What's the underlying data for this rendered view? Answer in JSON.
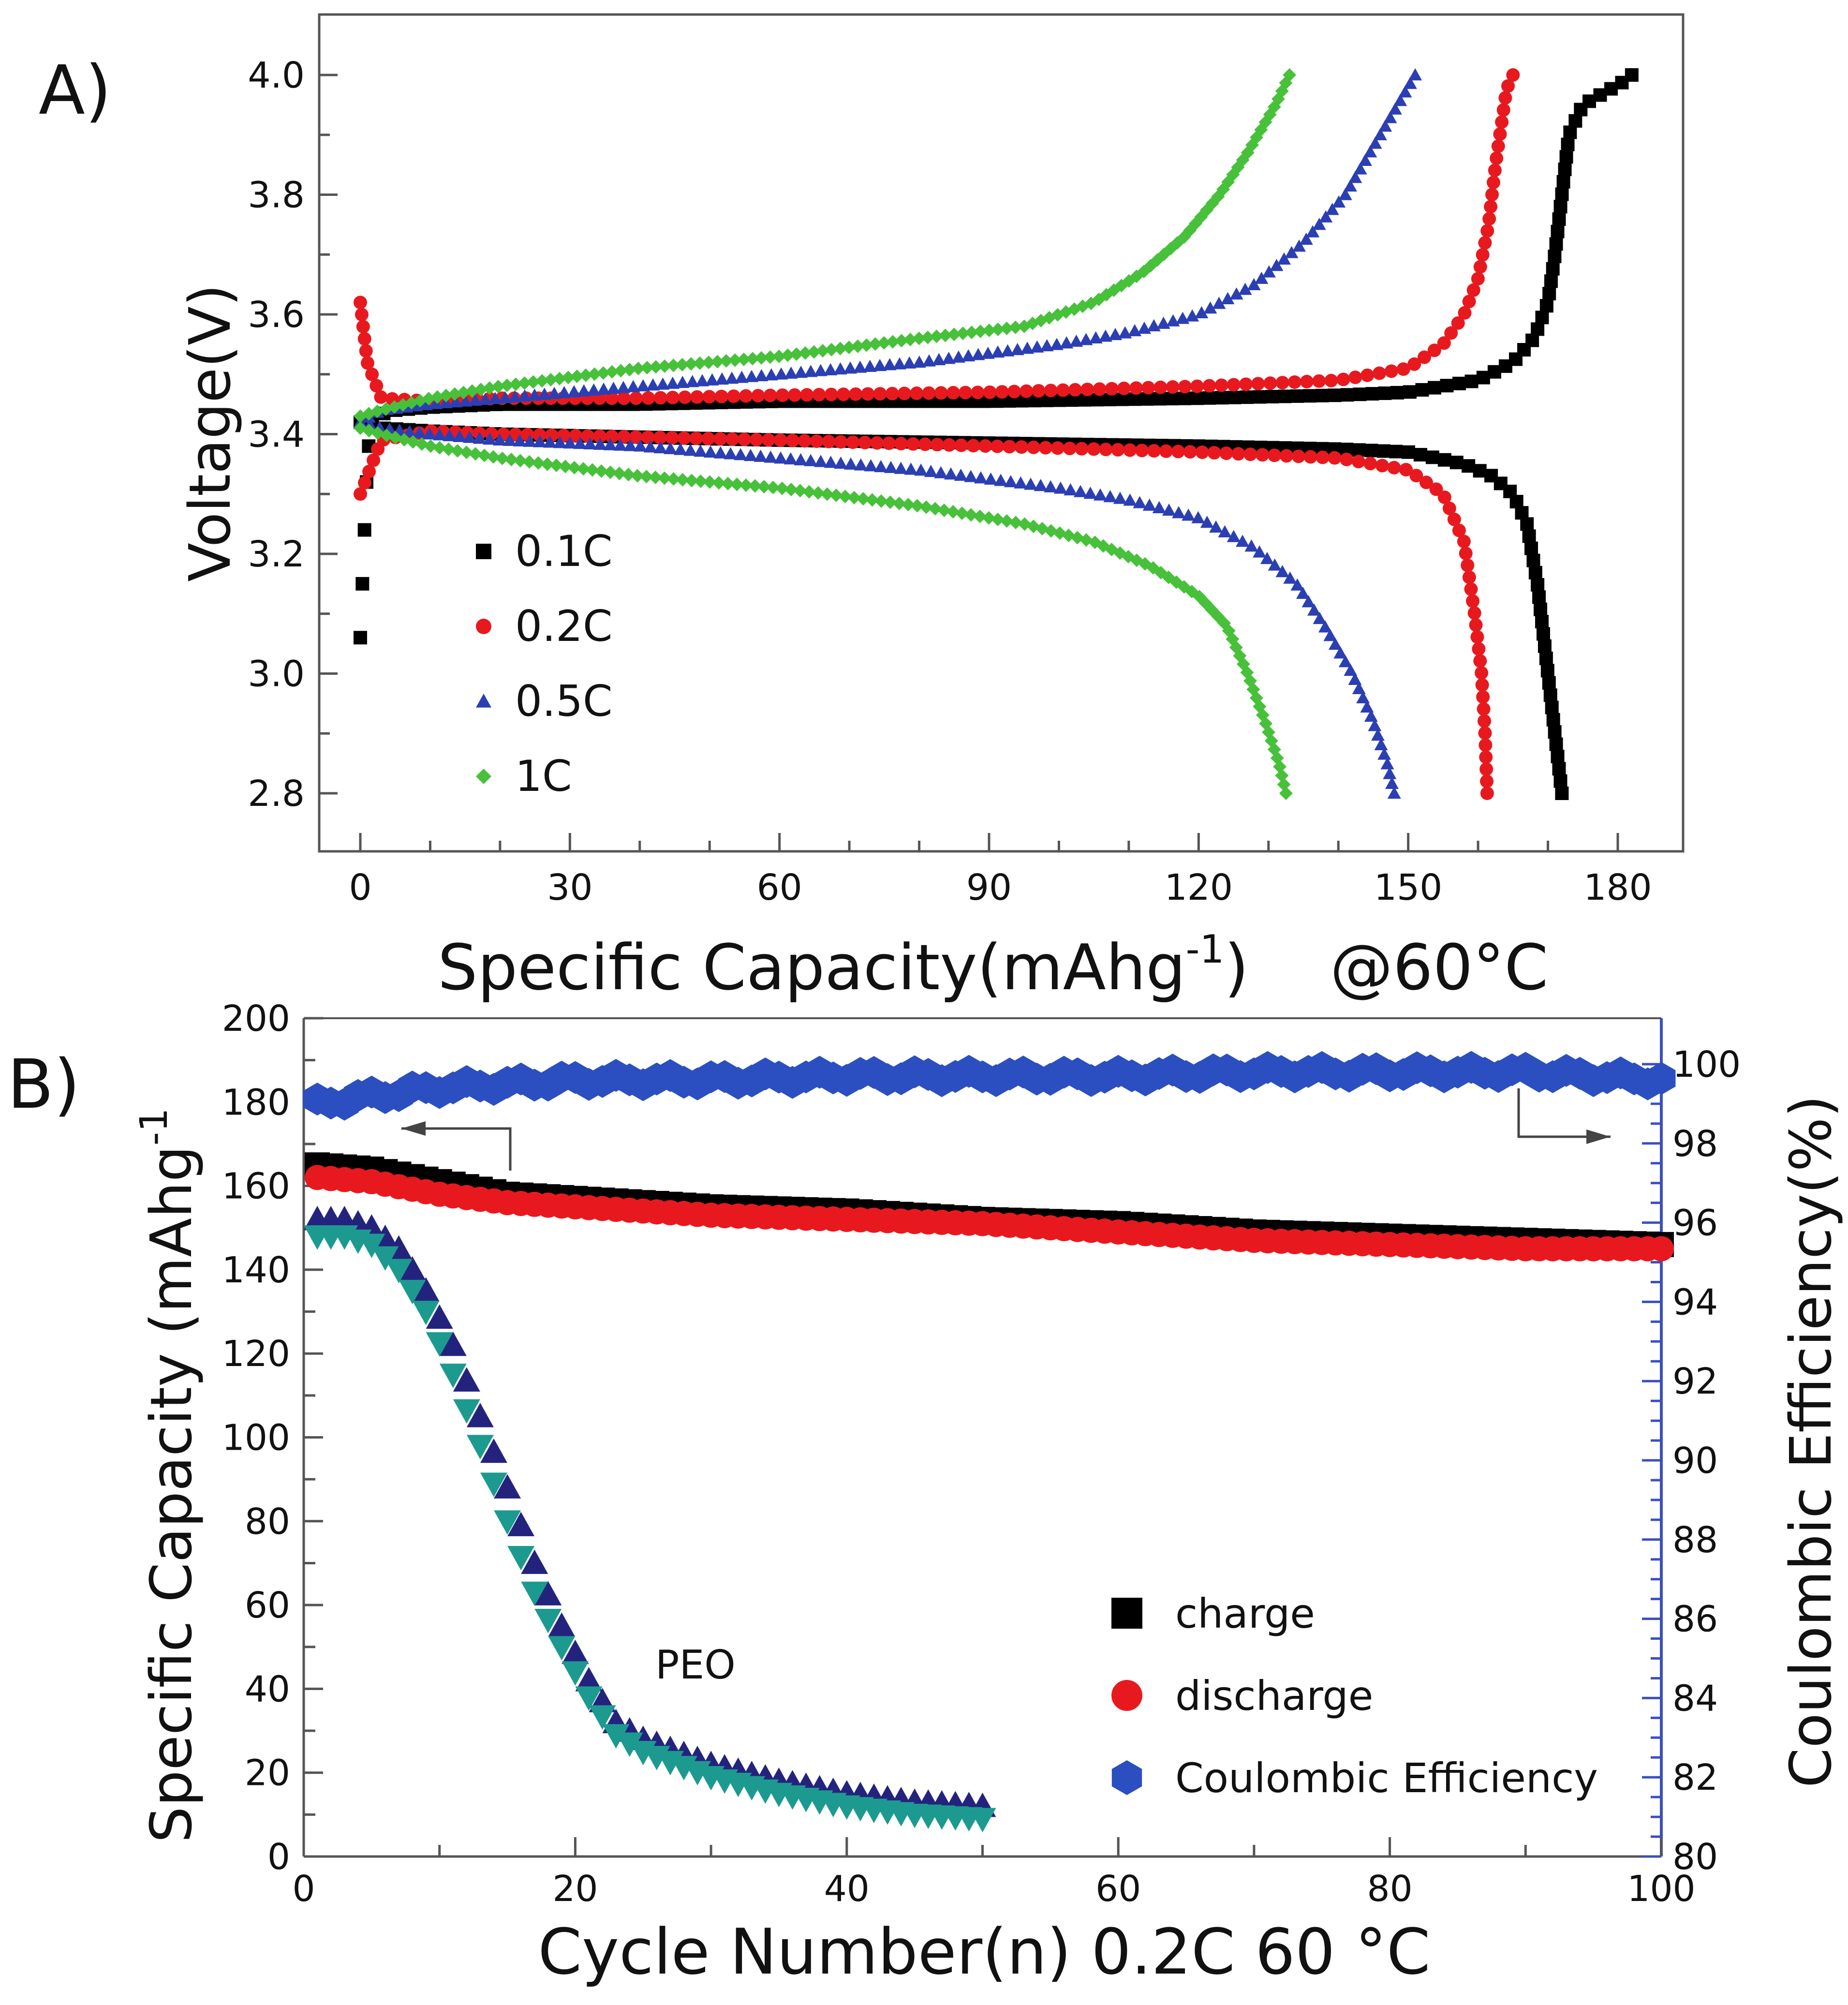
{
  "panel_a": {
    "label": "A)",
    "chart_data": {
      "type": "scatter",
      "title": "",
      "xlabel": "Specific Capacity(mAhg",
      "xlabel_sup": "-1",
      "xlabel_close": ")",
      "xlabel_note": "@60°C",
      "ylabel": "Voltage(V)",
      "xlim": [
        -5,
        188
      ],
      "ylim": [
        2.72,
        4.1
      ],
      "xticks": [
        0,
        30,
        60,
        90,
        120,
        150,
        180
      ],
      "xtick_labels": [
        "0",
        "30",
        "60",
        "90",
        "120",
        "150",
        "180"
      ],
      "yticks": [
        2.8,
        3.0,
        3.2,
        3.4,
        3.6,
        3.8,
        4.0
      ],
      "ytick_labels": [
        "2.8",
        "3.0",
        "3.2",
        "3.4",
        "3.6",
        "3.8",
        "4.0"
      ],
      "legend_position": "lower-left",
      "series": [
        {
          "name": "0.1C",
          "color": "#000000",
          "marker": "square",
          "charge": {
            "x": [
              0,
              2,
              5,
              10,
              20,
              40,
              60,
              90,
              120,
              140,
              150,
              160,
              165,
              168,
              170,
              171,
              172,
              173,
              175,
              178,
              181,
              182
            ],
            "y": [
              3.42,
              3.43,
              3.44,
              3.445,
              3.45,
              3.45,
              3.455,
              3.455,
              3.46,
              3.465,
              3.47,
              3.49,
              3.52,
              3.56,
              3.62,
              3.7,
              3.8,
              3.9,
              3.95,
              3.97,
              3.99,
              4.0
            ]
          },
          "discharge": {
            "x": [
              0,
              3,
              10,
              20,
              40,
              60,
              90,
              120,
              140,
              150,
              158,
              162,
              165,
              167,
              168.5,
              169.5,
              170.5,
              171.5,
              172
            ],
            "y": [
              3.42,
              3.41,
              3.405,
              3.4,
              3.395,
              3.39,
              3.385,
              3.38,
              3.375,
              3.37,
              3.35,
              3.33,
              3.3,
              3.25,
              3.15,
              3.05,
              2.95,
              2.85,
              2.8
            ]
          },
          "initial": {
            "x": [
              0,
              0.3,
              0.6,
              0.9,
              1.2
            ],
            "y": [
              3.06,
              3.15,
              3.24,
              3.32,
              3.38
            ]
          }
        },
        {
          "name": "0.2C",
          "color": "#e8191e",
          "marker": "circle",
          "charge": {
            "x": [
              0,
              1,
              3,
              10,
              20,
              40,
              60,
              90,
              120,
              140,
              150,
              155,
              158,
              160,
              161.5,
              162.5,
              163.5,
              164,
              164.5,
              165
            ],
            "y": [
              3.62,
              3.52,
              3.46,
              3.455,
              3.46,
              3.46,
              3.465,
              3.47,
              3.48,
              3.49,
              3.51,
              3.55,
              3.6,
              3.66,
              3.75,
              3.85,
              3.93,
              3.97,
              3.99,
              4.0
            ]
          },
          "discharge": {
            "x": [
              0,
              1,
              3,
              10,
              20,
              40,
              60,
              90,
              120,
              140,
              150,
              155,
              158,
              159.5,
              160.5,
              161,
              161.3
            ],
            "y": [
              3.3,
              3.33,
              3.39,
              3.405,
              3.4,
              3.395,
              3.39,
              3.38,
              3.37,
              3.36,
              3.34,
              3.3,
              3.22,
              3.1,
              3.0,
              2.9,
              2.8
            ]
          }
        },
        {
          "name": "0.5C",
          "color": "#2b3fb3",
          "marker": "triangle",
          "charge": {
            "x": [
              0,
              3,
              10,
              20,
              40,
              60,
              80,
              100,
              110,
              120,
              128,
              135,
              141,
              146,
              150,
              151
            ],
            "y": [
              3.42,
              3.44,
              3.45,
              3.46,
              3.48,
              3.5,
              3.52,
              3.55,
              3.57,
              3.6,
              3.65,
              3.72,
              3.8,
              3.9,
              3.98,
              4.0
            ]
          },
          "discharge": {
            "x": [
              0,
              3,
              10,
              20,
              40,
              60,
              80,
              100,
              110,
              120,
              128,
              134,
              138,
              142,
              145,
              147,
              148
            ],
            "y": [
              3.42,
              3.41,
              3.4,
              3.39,
              3.38,
              3.36,
              3.34,
              3.31,
              3.29,
              3.26,
              3.21,
              3.15,
              3.08,
              3.0,
              2.92,
              2.85,
              2.8
            ]
          }
        },
        {
          "name": "1C",
          "color": "#47c13a",
          "marker": "diamond",
          "charge": {
            "x": [
              0,
              3,
              10,
              20,
              40,
              60,
              80,
              95,
              105,
              112,
              118,
              123,
              127,
              131,
              133
            ],
            "y": [
              3.43,
              3.44,
              3.46,
              3.48,
              3.51,
              3.53,
              3.56,
              3.58,
              3.62,
              3.67,
              3.73,
              3.8,
              3.87,
              3.95,
              4.0
            ]
          },
          "discharge": {
            "x": [
              0,
              3,
              10,
              20,
              40,
              60,
              80,
              95,
              105,
              113,
              120,
              124,
              127,
              129.5,
              131.5,
              132.5
            ],
            "y": [
              3.41,
              3.4,
              3.38,
              3.36,
              3.33,
              3.31,
              3.28,
              3.25,
              3.22,
              3.18,
              3.13,
              3.08,
              3.0,
              2.92,
              2.85,
              2.8
            ]
          }
        }
      ]
    }
  },
  "panel_b": {
    "label": "B)",
    "chart_data": {
      "type": "scatter",
      "title": "",
      "xlabel": "Cycle Number(n)  0.2C 60 °C",
      "ylabel": "Specific Capacity (mAhg",
      "ylabel_sup": "-1",
      "ylabel2": "Coulombic Efficiency(%)",
      "xlim": [
        0,
        100
      ],
      "ylim": [
        0,
        200
      ],
      "y2lim": [
        80,
        101
      ],
      "xticks": [
        0,
        20,
        40,
        60,
        80,
        100
      ],
      "xtick_labels": [
        "0",
        "20",
        "40",
        "60",
        "80",
        "100"
      ],
      "yticks": [
        0,
        20,
        40,
        60,
        80,
        100,
        120,
        140,
        160,
        180,
        200
      ],
      "ytick_labels": [
        "0",
        "20",
        "40",
        "60",
        "80",
        "100",
        "120",
        "140",
        "160",
        "180",
        "200"
      ],
      "y2ticks": [
        80,
        82,
        84,
        86,
        88,
        90,
        92,
        94,
        96,
        98,
        100
      ],
      "y2tick_labels": [
        "80",
        "82",
        "84",
        "86",
        "88",
        "90",
        "92",
        "94",
        "96",
        "98",
        "100"
      ],
      "annotation": "PEO",
      "legend_position": "lower-right",
      "legend": [
        {
          "name": "charge",
          "color": "#000000",
          "marker": "square"
        },
        {
          "name": "discharge",
          "color": "#e8191e",
          "marker": "circle"
        },
        {
          "name": "Coulombic Efficiency",
          "color": "#2b4fc0",
          "marker": "hexagon"
        }
      ],
      "series": [
        {
          "name": "charge",
          "axis": "left",
          "color": "#000000",
          "x": [
            1,
            5,
            10,
            15,
            20,
            30,
            40,
            50,
            60,
            70,
            80,
            90,
            100
          ],
          "y": [
            165,
            164,
            161,
            158,
            157,
            155,
            154,
            152,
            151,
            149,
            148,
            147,
            146
          ]
        },
        {
          "name": "discharge",
          "axis": "left",
          "color": "#e8191e",
          "x": [
            1,
            5,
            10,
            15,
            20,
            30,
            40,
            50,
            60,
            70,
            80,
            90,
            100
          ],
          "y": [
            162,
            161,
            158,
            156,
            155,
            153,
            152,
            151,
            149,
            147,
            146,
            145,
            145
          ]
        },
        {
          "name": "Coulombic Efficiency",
          "axis": "right",
          "color": "#2b4fc0",
          "x": [
            1,
            5,
            10,
            15,
            20,
            30,
            40,
            50,
            60,
            70,
            80,
            90,
            100
          ],
          "y": [
            99.0,
            99.2,
            99.4,
            99.5,
            99.6,
            99.6,
            99.7,
            99.7,
            99.7,
            99.8,
            99.8,
            99.8,
            99.6
          ]
        },
        {
          "name": "PEO charge",
          "axis": "left",
          "color": "#23237e",
          "marker": "triangle-up",
          "x": [
            1,
            3,
            5,
            7,
            9,
            11,
            13,
            15,
            17,
            19,
            21,
            23,
            25,
            30,
            35,
            40,
            45,
            50
          ],
          "y": [
            152,
            152,
            150,
            145,
            135,
            122,
            105,
            88,
            70,
            55,
            42,
            32,
            28,
            22,
            18,
            15,
            13,
            12
          ]
        },
        {
          "name": "PEO discharge",
          "axis": "left",
          "color": "#1d9a8f",
          "marker": "triangle-down",
          "x": [
            1,
            3,
            5,
            7,
            9,
            11,
            13,
            15,
            17,
            19,
            21,
            23,
            25,
            30,
            35,
            40,
            45,
            50
          ],
          "y": [
            148,
            148,
            146,
            140,
            130,
            115,
            98,
            80,
            63,
            50,
            38,
            29,
            25,
            19,
            15,
            12,
            10,
            9
          ]
        }
      ]
    }
  }
}
